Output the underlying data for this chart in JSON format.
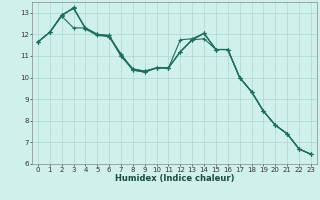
{
  "xlabel": "Humidex (Indice chaleur)",
  "bg_color": "#cff0eb",
  "line_color": "#1e6e60",
  "grid_color": "#aad8d0",
  "xlim": [
    -0.5,
    23.5
  ],
  "ylim": [
    6,
    13.5
  ],
  "xticks": [
    0,
    1,
    2,
    3,
    4,
    5,
    6,
    7,
    8,
    9,
    10,
    11,
    12,
    13,
    14,
    15,
    16,
    17,
    18,
    19,
    20,
    21,
    22,
    23
  ],
  "yticks": [
    6,
    7,
    8,
    9,
    10,
    11,
    12,
    13
  ],
  "series": [
    [
      11.65,
      12.1,
      12.9,
      13.2,
      12.3,
      12.0,
      11.95,
      11.0,
      10.4,
      10.3,
      10.45,
      10.45,
      11.75,
      11.8,
      12.05,
      11.3,
      11.3,
      10.0,
      9.35,
      8.45,
      7.8,
      7.4,
      6.7,
      6.45
    ],
    [
      11.65,
      12.1,
      12.85,
      12.3,
      12.3,
      12.0,
      11.95,
      11.05,
      10.4,
      10.3,
      10.45,
      10.45,
      11.2,
      11.75,
      11.8,
      11.3,
      11.3,
      10.0,
      9.35,
      8.45,
      7.8,
      7.4,
      6.7,
      6.45
    ],
    [
      11.65,
      12.1,
      12.9,
      13.2,
      12.3,
      12.0,
      11.9,
      11.1,
      10.35,
      10.25,
      10.45,
      10.45,
      11.2,
      11.75,
      12.05,
      11.3,
      11.3,
      10.0,
      9.35,
      8.45,
      7.8,
      7.4,
      6.7,
      6.45
    ],
    [
      11.65,
      12.1,
      12.85,
      13.25,
      12.25,
      11.95,
      11.9,
      11.0,
      10.35,
      10.25,
      10.45,
      10.45,
      11.2,
      11.75,
      12.05,
      11.3,
      11.3,
      10.0,
      9.35,
      8.45,
      7.8,
      7.4,
      6.7,
      6.45
    ]
  ],
  "marker": "+",
  "markersize": 3,
  "linewidth": 0.8,
  "tick_fontsize": 5,
  "xlabel_fontsize": 6,
  "xlabel_fontweight": "bold",
  "xlabel_color": "#1a4a40"
}
